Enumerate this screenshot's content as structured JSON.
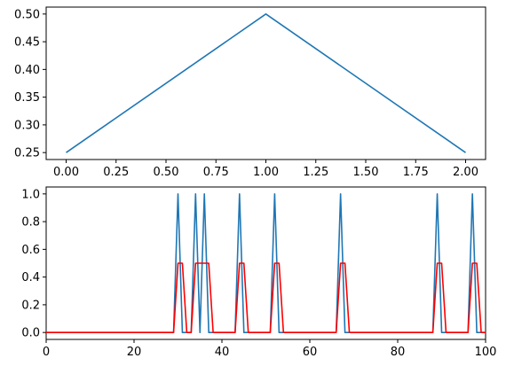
{
  "colors": {
    "series_blue": "#1f77b4",
    "series_red": "#ff0000",
    "axes": "#000000",
    "background": "#ffffff"
  },
  "chart_data": [
    {
      "type": "line",
      "title": "",
      "xlabel": "",
      "ylabel": "",
      "xlim": [
        -0.1,
        2.1
      ],
      "ylim": [
        0.2375,
        0.5125
      ],
      "grid": false,
      "legend": "none",
      "xticks": [
        0.0,
        0.25,
        0.5,
        0.75,
        1.0,
        1.25,
        1.5,
        1.75,
        2.0
      ],
      "xtick_labels": [
        "0.00",
        "0.25",
        "0.50",
        "0.75",
        "1.00",
        "1.25",
        "1.50",
        "1.75",
        "2.00"
      ],
      "yticks": [
        0.25,
        0.3,
        0.35,
        0.4,
        0.45,
        0.5
      ],
      "ytick_labels": [
        "0.25",
        "0.30",
        "0.35",
        "0.40",
        "0.45",
        "0.50"
      ],
      "series": [
        {
          "color": "#1f77b4",
          "x": [
            0,
            1,
            2
          ],
          "y": [
            0.25,
            0.5,
            0.25
          ]
        }
      ]
    },
    {
      "type": "line",
      "title": "",
      "xlabel": "",
      "ylabel": "",
      "xlim": [
        0,
        100
      ],
      "ylim": [
        -0.05,
        1.05
      ],
      "grid": false,
      "legend": "none",
      "xticks": [
        0,
        20,
        40,
        60,
        80,
        100
      ],
      "xtick_labels": [
        "0",
        "20",
        "40",
        "60",
        "80",
        "100"
      ],
      "yticks": [
        0.0,
        0.2,
        0.4,
        0.6,
        0.8,
        1.0
      ],
      "ytick_labels": [
        "0.0",
        "0.2",
        "0.4",
        "0.6",
        "0.8",
        "1.0"
      ],
      "spike_positions": [
        30,
        34,
        36,
        44,
        52,
        67,
        89,
        97
      ],
      "smoothed_peaks": [
        {
          "x": 31,
          "y": 0.5
        },
        {
          "x": 35,
          "y": 0.5
        },
        {
          "x": 36,
          "y": 0.5
        },
        {
          "x": 37,
          "y": 0.5
        },
        {
          "x": 45,
          "y": 0.5
        },
        {
          "x": 53,
          "y": 0.5
        },
        {
          "x": 68,
          "y": 0.5
        },
        {
          "x": 90,
          "y": 0.5
        },
        {
          "x": 98,
          "y": 0.5
        }
      ],
      "series": [
        {
          "color": "#1f77b4",
          "description": "binary spikes: 1 at spike_positions, 0 elsewhere, integer steps 0..100"
        },
        {
          "color": "#ff0000",
          "description": "2-point moving average of spikes shifted right by one step"
        }
      ]
    }
  ]
}
